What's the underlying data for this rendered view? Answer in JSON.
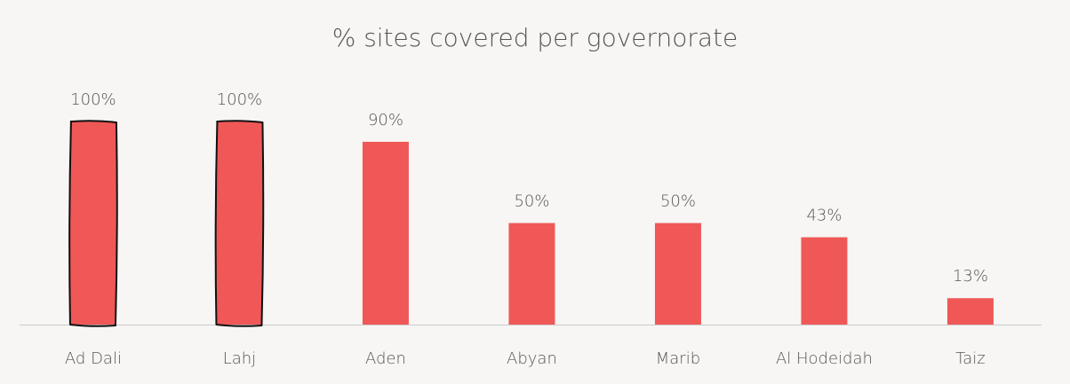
{
  "chart_data": {
    "type": "bar",
    "title": "% sites covered per governorate",
    "categories": [
      "Ad Dali",
      "Lahj",
      "Aden",
      "Abyan",
      "Marib",
      "Al Hodeidah",
      "Taiz"
    ],
    "values": [
      100,
      100,
      90,
      50,
      50,
      43,
      13
    ],
    "value_labels": [
      "100%",
      "100%",
      "90%",
      "50%",
      "50%",
      "43%",
      "13%"
    ],
    "color": "#ef5857",
    "highlighted": [
      "Ad Dali",
      "Lahj"
    ]
  }
}
